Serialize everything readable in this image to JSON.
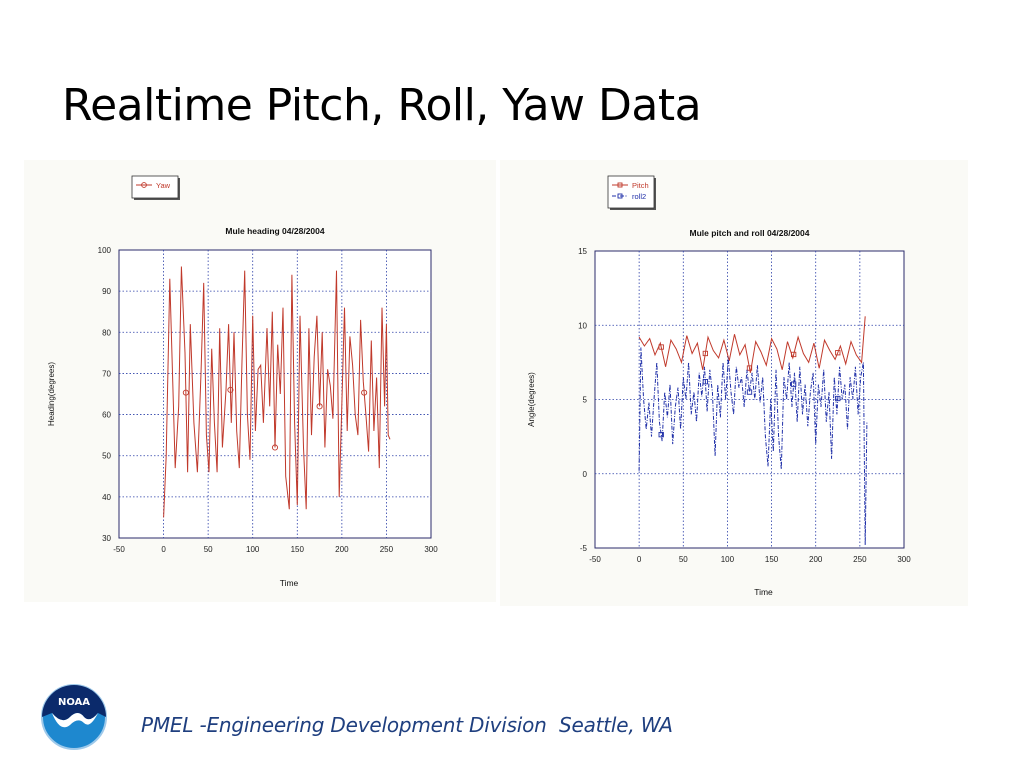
{
  "slide": {
    "title": "Realtime Pitch, Roll, Yaw Data",
    "footer": "PMEL -Engineering Development Division  Seattle, WA",
    "logo_text": "NOAA"
  },
  "chart_data": [
    {
      "type": "line",
      "title": "Mule heading 04/28/2004",
      "xlabel": "Time",
      "ylabel": "Heading(degrees)",
      "xlim": [
        -50,
        300
      ],
      "ylim": [
        30,
        100
      ],
      "x_ticks": [
        -50,
        0,
        50,
        100,
        150,
        200,
        250,
        300
      ],
      "y_ticks": [
        30,
        40,
        50,
        60,
        70,
        80,
        90,
        100
      ],
      "grid": true,
      "legend_position": "top-left",
      "marker_every": 50,
      "series": [
        {
          "name": "Yaw",
          "color": "#c0392b",
          "marker": "circle",
          "line_style": "solid",
          "x": [
            0,
            3,
            7,
            10,
            13,
            17,
            20,
            24,
            27,
            30,
            34,
            38,
            42,
            45,
            48,
            51,
            54,
            57,
            60,
            63,
            66,
            70,
            73,
            76,
            79,
            82,
            85,
            88,
            91,
            94,
            97,
            100,
            103,
            106,
            109,
            112,
            116,
            119,
            122,
            125,
            128,
            131,
            134,
            137,
            141,
            144,
            147,
            150,
            153,
            157,
            160,
            163,
            166,
            169,
            172,
            175,
            178,
            181,
            184,
            187,
            190,
            194,
            197,
            200,
            203,
            206,
            209,
            212,
            215,
            218,
            221,
            224,
            227,
            230,
            233,
            236,
            239,
            242,
            245,
            248,
            250,
            252,
            254
          ],
          "y": [
            35,
            50,
            93,
            70,
            47,
            62,
            96,
            75,
            46,
            82,
            58,
            46,
            70,
            92,
            55,
            46,
            76,
            58,
            46,
            81,
            52,
            66,
            82,
            58,
            80,
            56,
            47,
            73,
            95,
            60,
            49,
            84,
            56,
            71,
            72,
            58,
            81,
            62,
            85,
            52,
            77,
            65,
            86,
            45,
            37,
            94,
            58,
            38,
            84,
            52,
            37,
            81,
            55,
            74,
            84,
            62,
            80,
            52,
            71,
            67,
            59,
            95,
            40,
            63,
            86,
            56,
            79,
            72,
            60,
            55,
            83,
            68,
            60,
            51,
            78,
            56,
            69,
            47,
            86,
            62,
            82,
            55,
            54
          ]
        }
      ]
    },
    {
      "type": "line",
      "title": "Mule pitch and roll 04/28/2004",
      "xlabel": "Time",
      "ylabel": "Angle(degrees)",
      "xlim": [
        -50,
        300
      ],
      "ylim": [
        -5,
        15
      ],
      "x_ticks": [
        -50,
        0,
        50,
        100,
        150,
        200,
        250,
        300
      ],
      "y_ticks": [
        -5,
        0,
        5,
        10,
        15
      ],
      "grid": true,
      "legend_position": "top-left",
      "marker_every": 50,
      "series": [
        {
          "name": "Pitch",
          "color": "#c0392b",
          "marker": "square",
          "line_style": "solid",
          "x": [
            0,
            6,
            12,
            18,
            24,
            30,
            36,
            42,
            48,
            54,
            60,
            66,
            72,
            78,
            84,
            90,
            96,
            102,
            108,
            114,
            120,
            126,
            132,
            138,
            144,
            150,
            156,
            162,
            168,
            174,
            180,
            186,
            192,
            198,
            204,
            210,
            216,
            222,
            228,
            234,
            240,
            246,
            252,
            256
          ],
          "y": [
            9.2,
            8.6,
            9.1,
            8.0,
            8.8,
            7.2,
            9.0,
            8.4,
            7.5,
            9.3,
            8.1,
            8.8,
            7.0,
            9.2,
            8.3,
            7.8,
            9.0,
            7.6,
            9.4,
            8.0,
            8.7,
            6.8,
            8.9,
            8.2,
            7.3,
            9.1,
            8.4,
            7.0,
            8.9,
            7.8,
            9.2,
            8.1,
            7.5,
            8.8,
            7.1,
            9.0,
            8.3,
            7.7,
            8.6,
            7.4,
            8.9,
            8.0,
            7.5,
            10.6
          ]
        },
        {
          "name": "roll2",
          "color": "#1f2fa8",
          "marker": "square",
          "line_style": "dash-dot",
          "x": [
            0,
            2,
            5,
            8,
            11,
            14,
            17,
            20,
            23,
            26,
            29,
            32,
            35,
            38,
            41,
            44,
            47,
            50,
            53,
            56,
            59,
            62,
            65,
            68,
            71,
            74,
            77,
            80,
            83,
            86,
            89,
            92,
            95,
            98,
            101,
            104,
            107,
            110,
            113,
            116,
            119,
            122,
            125,
            128,
            131,
            134,
            137,
            140,
            143,
            146,
            149,
            152,
            155,
            158,
            161,
            164,
            167,
            170,
            173,
            176,
            179,
            182,
            185,
            188,
            191,
            194,
            197,
            200,
            203,
            206,
            209,
            212,
            215,
            218,
            221,
            224,
            227,
            230,
            233,
            236,
            239,
            242,
            245,
            248,
            251,
            254,
            256,
            258
          ],
          "y": [
            0.2,
            8.5,
            5.0,
            3.0,
            4.8,
            2.5,
            5.2,
            7.5,
            3.5,
            2.2,
            5.5,
            3.8,
            6.0,
            2.0,
            4.5,
            5.8,
            3.0,
            6.5,
            5.0,
            7.5,
            4.0,
            5.5,
            3.5,
            6.8,
            5.2,
            7.2,
            4.2,
            7.0,
            5.5,
            1.2,
            6.0,
            3.8,
            7.5,
            5.0,
            7.8,
            5.5,
            4.0,
            7.2,
            5.8,
            6.5,
            4.5,
            7.0,
            5.5,
            6.8,
            5.0,
            7.3,
            4.8,
            6.5,
            2.5,
            0.5,
            5.0,
            1.5,
            7.0,
            2.5,
            0.3,
            6.5,
            5.0,
            7.5,
            4.5,
            6.8,
            3.5,
            7.2,
            4.0,
            6.0,
            3.2,
            5.5,
            6.8,
            2.0,
            6.0,
            4.5,
            7.0,
            3.5,
            5.5,
            1.0,
            6.5,
            4.0,
            7.2,
            5.0,
            6.0,
            3.0,
            6.5,
            5.0,
            7.2,
            4.0,
            6.5,
            7.5,
            -4.8,
            3.5
          ]
        }
      ]
    }
  ]
}
